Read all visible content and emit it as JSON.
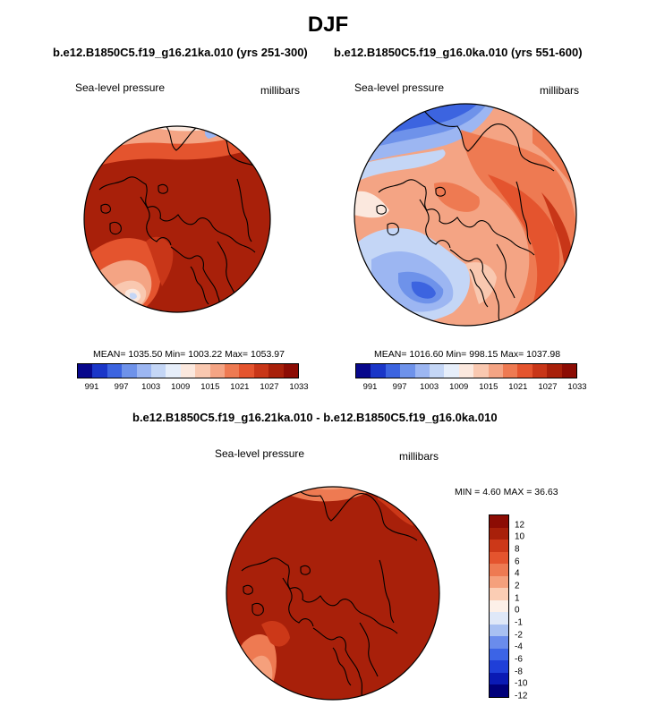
{
  "title": "DJF",
  "subtitles": {
    "left": "b.e12.B1850C5.f19_g16.21ka.010 (yrs 251-300)",
    "right": "b.e12.B1850C5.f19_g16.0ka.010 (yrs 551-600)",
    "diff": "b.e12.B1850C5.f19_g16.21ka.010 - b.e12.B1850C5.f19_g16.0ka.010"
  },
  "panels": [
    {
      "variable": "Sea-level pressure",
      "units": "millibars",
      "stats": "MEAN= 1035.50   Min= 1003.22   Max= 1053.97",
      "mean": 1035.5,
      "min": 1003.22,
      "max": 1053.97
    },
    {
      "variable": "Sea-level pressure",
      "units": "millibars",
      "stats": "MEAN= 1016.60   Min= 998.15   Max= 1037.98",
      "mean": 1016.6,
      "min": 998.15,
      "max": 1037.98
    },
    {
      "variable": "Sea-level pressure",
      "units": "millibars",
      "stats": "MIN =   4.60 MAX =  36.63",
      "min": 4.6,
      "max": 36.63
    }
  ],
  "colorbar_abs": {
    "colors": [
      "#08088c",
      "#1a36c8",
      "#3c64e0",
      "#6e92ea",
      "#9cb6f2",
      "#c4d6f6",
      "#e6eefa",
      "#fbe8de",
      "#f9c8b0",
      "#f4a484",
      "#ee7a52",
      "#e4542e",
      "#c83618",
      "#a8200a",
      "#8c0c04"
    ],
    "tick_labels": [
      "991",
      "997",
      "1003",
      "1009",
      "1015",
      "1021",
      "1027",
      "1033"
    ]
  },
  "colorbar_diff": {
    "colors": [
      "#00007a",
      "#0a1ab4",
      "#1f3fd8",
      "#3c64e6",
      "#6a8cec",
      "#a8c0f2",
      "#dfe8f8",
      "#fdf0e8",
      "#fbcdb4",
      "#f5a07c",
      "#ee7a52",
      "#e4542e",
      "#cc3818",
      "#a8200a",
      "#8c0c04"
    ],
    "tick_labels": [
      "12",
      "10",
      "8",
      "6",
      "4",
      "2",
      "1",
      "0",
      "-1",
      "-2",
      "-4",
      "-6",
      "-8",
      "-10",
      "-12"
    ]
  }
}
